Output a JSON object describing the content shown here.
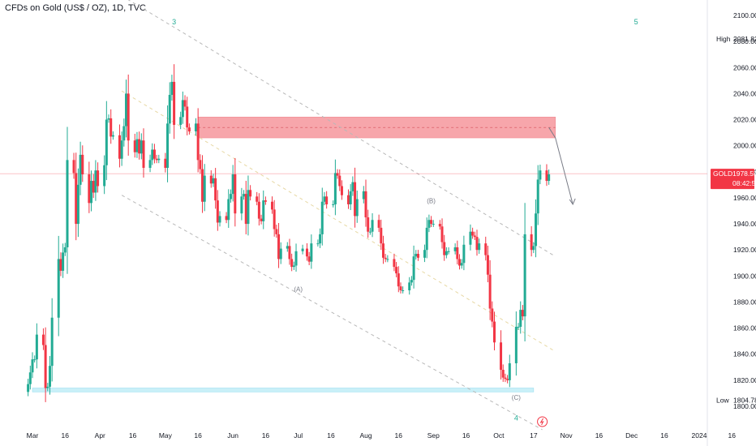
{
  "header": {
    "title": "CFDs on Gold (US$ / OZ), 1D, TVC"
  },
  "colors": {
    "up": "#22ab94",
    "down": "#f23645",
    "zone_red": "#f7a1a7",
    "zone_blue": "#c9f0f8",
    "channel": "#b8b8b8",
    "mid_channel": "#e7d8a4",
    "wave_green": "#22ab94",
    "wave_gray": "#787b86",
    "gold_tag": "#f23645"
  },
  "chart_data": {
    "type": "candlestick",
    "symbol": "GOLD",
    "timeframe": "1D",
    "ylim": [
      1790,
      2110
    ],
    "y_ticks": [
      1800,
      1820,
      1840,
      1860,
      1880,
      1900,
      1920,
      1940,
      1960,
      1980,
      2000,
      2020,
      2040,
      2060,
      2080,
      2100
    ],
    "y_tick_labels": [
      "1800.00",
      "1820.00",
      "1840.00",
      "1860.00",
      "1880.00",
      "1900.00",
      "1920.00",
      "1940.00",
      "1960.00",
      "1980.00",
      "2000.00",
      "2020.00",
      "2040.00",
      "2060.00",
      "2080.00",
      "2100.00"
    ],
    "x_ticks": [
      {
        "date": "2023-03-01",
        "label": "Mar"
      },
      {
        "date": "2023-03-16",
        "label": "16"
      },
      {
        "date": "2023-04-01",
        "label": "Apr"
      },
      {
        "date": "2023-04-16",
        "label": "16"
      },
      {
        "date": "2023-05-01",
        "label": "May"
      },
      {
        "date": "2023-05-16",
        "label": "16"
      },
      {
        "date": "2023-06-01",
        "label": "Jun"
      },
      {
        "date": "2023-06-16",
        "label": "16"
      },
      {
        "date": "2023-07-01",
        "label": "Jul"
      },
      {
        "date": "2023-07-16",
        "label": "16"
      },
      {
        "date": "2023-08-01",
        "label": "Aug"
      },
      {
        "date": "2023-08-16",
        "label": "16"
      },
      {
        "date": "2023-09-01",
        "label": "Sep"
      },
      {
        "date": "2023-09-16",
        "label": "16"
      },
      {
        "date": "2023-10-01",
        "label": "Oct"
      },
      {
        "date": "2023-10-17",
        "label": "17"
      },
      {
        "date": "2023-11-01",
        "label": "Nov"
      },
      {
        "date": "2023-11-16",
        "label": "16"
      },
      {
        "date": "2023-12-01",
        "label": "Dec"
      },
      {
        "date": "2023-12-16",
        "label": "16"
      },
      {
        "date": "2024-01-01",
        "label": "2024"
      },
      {
        "date": "2024-01-16",
        "label": "16"
      }
    ],
    "x_domain": [
      "2023-02-25",
      "2024-01-20"
    ],
    "closes": [
      {
        "d": "2023-02-27",
        "c": 1817
      },
      {
        "d": "2023-02-28",
        "c": 1826
      },
      {
        "d": "2023-03-01",
        "c": 1836
      },
      {
        "d": "2023-03-02",
        "c": 1836
      },
      {
        "d": "2023-03-03",
        "c": 1855
      },
      {
        "d": "2023-03-06",
        "c": 1847
      },
      {
        "d": "2023-03-07",
        "c": 1814
      },
      {
        "d": "2023-03-08",
        "c": 1815
      },
      {
        "d": "2023-03-09",
        "c": 1831
      },
      {
        "d": "2023-03-10",
        "c": 1868
      },
      {
        "d": "2023-03-13",
        "c": 1913
      },
      {
        "d": "2023-03-14",
        "c": 1904
      },
      {
        "d": "2023-03-15",
        "c": 1918
      },
      {
        "d": "2023-03-16",
        "c": 1922
      },
      {
        "d": "2023-03-17",
        "c": 1989
      },
      {
        "d": "2023-03-20",
        "c": 1979
      },
      {
        "d": "2023-03-21",
        "c": 1940
      },
      {
        "d": "2023-03-22",
        "c": 1970
      },
      {
        "d": "2023-03-23",
        "c": 1993
      },
      {
        "d": "2023-03-24",
        "c": 1978
      },
      {
        "d": "2023-03-27",
        "c": 1956
      },
      {
        "d": "2023-03-28",
        "c": 1973
      },
      {
        "d": "2023-03-29",
        "c": 1964
      },
      {
        "d": "2023-03-30",
        "c": 1981
      },
      {
        "d": "2023-03-31",
        "c": 1969
      },
      {
        "d": "2023-04-03",
        "c": 1985
      },
      {
        "d": "2023-04-04",
        "c": 2020
      },
      {
        "d": "2023-04-05",
        "c": 2021
      },
      {
        "d": "2023-04-06",
        "c": 2007
      },
      {
        "d": "2023-04-07",
        "c": 2008
      },
      {
        "d": "2023-04-10",
        "c": 1990
      },
      {
        "d": "2023-04-11",
        "c": 2004
      },
      {
        "d": "2023-04-12",
        "c": 2015
      },
      {
        "d": "2023-04-13",
        "c": 2040
      },
      {
        "d": "2023-04-14",
        "c": 2004
      },
      {
        "d": "2023-04-17",
        "c": 1995
      },
      {
        "d": "2023-04-18",
        "c": 2005
      },
      {
        "d": "2023-04-19",
        "c": 1994
      },
      {
        "d": "2023-04-20",
        "c": 2004
      },
      {
        "d": "2023-04-21",
        "c": 1983
      },
      {
        "d": "2023-04-24",
        "c": 1989
      },
      {
        "d": "2023-04-25",
        "c": 1997
      },
      {
        "d": "2023-04-26",
        "c": 1990
      },
      {
        "d": "2023-04-27",
        "c": 1989
      },
      {
        "d": "2023-04-28",
        "c": 1990
      },
      {
        "d": "2023-05-01",
        "c": 1983
      },
      {
        "d": "2023-05-02",
        "c": 2017
      },
      {
        "d": "2023-05-03",
        "c": 2039
      },
      {
        "d": "2023-05-04",
        "c": 2049
      },
      {
        "d": "2023-05-05",
        "c": 2016
      },
      {
        "d": "2023-05-08",
        "c": 2022
      },
      {
        "d": "2023-05-09",
        "c": 2035
      },
      {
        "d": "2023-05-10",
        "c": 2030
      },
      {
        "d": "2023-05-11",
        "c": 2014
      },
      {
        "d": "2023-05-12",
        "c": 2011
      },
      {
        "d": "2023-05-15",
        "c": 2017
      },
      {
        "d": "2023-05-16",
        "c": 1989
      },
      {
        "d": "2023-05-17",
        "c": 1982
      },
      {
        "d": "2023-05-18",
        "c": 1957
      },
      {
        "d": "2023-05-19",
        "c": 1977
      },
      {
        "d": "2023-05-22",
        "c": 1971
      },
      {
        "d": "2023-05-23",
        "c": 1975
      },
      {
        "d": "2023-05-24",
        "c": 1958
      },
      {
        "d": "2023-05-25",
        "c": 1941
      },
      {
        "d": "2023-05-26",
        "c": 1946
      },
      {
        "d": "2023-05-29",
        "c": 1943
      },
      {
        "d": "2023-05-30",
        "c": 1959
      },
      {
        "d": "2023-05-31",
        "c": 1963
      },
      {
        "d": "2023-06-01",
        "c": 1978
      },
      {
        "d": "2023-06-02",
        "c": 1948
      },
      {
        "d": "2023-06-05",
        "c": 1961
      },
      {
        "d": "2023-06-06",
        "c": 1963
      },
      {
        "d": "2023-06-07",
        "c": 1940
      },
      {
        "d": "2023-06-08",
        "c": 1966
      },
      {
        "d": "2023-06-09",
        "c": 1961
      },
      {
        "d": "2023-06-12",
        "c": 1957
      },
      {
        "d": "2023-06-13",
        "c": 1944
      },
      {
        "d": "2023-06-14",
        "c": 1942
      },
      {
        "d": "2023-06-15",
        "c": 1958
      },
      {
        "d": "2023-06-16",
        "c": 1957
      },
      {
        "d": "2023-06-19",
        "c": 1951
      },
      {
        "d": "2023-06-20",
        "c": 1936
      },
      {
        "d": "2023-06-21",
        "c": 1932
      },
      {
        "d": "2023-06-22",
        "c": 1913
      },
      {
        "d": "2023-06-23",
        "c": 1921
      },
      {
        "d": "2023-06-26",
        "c": 1923
      },
      {
        "d": "2023-06-27",
        "c": 1913
      },
      {
        "d": "2023-06-28",
        "c": 1907
      },
      {
        "d": "2023-06-29",
        "c": 1908
      },
      {
        "d": "2023-06-30",
        "c": 1919
      },
      {
        "d": "2023-07-03",
        "c": 1921
      },
      {
        "d": "2023-07-05",
        "c": 1915
      },
      {
        "d": "2023-07-06",
        "c": 1911
      },
      {
        "d": "2023-07-07",
        "c": 1925
      },
      {
        "d": "2023-07-10",
        "c": 1925
      },
      {
        "d": "2023-07-11",
        "c": 1932
      },
      {
        "d": "2023-07-12",
        "c": 1957
      },
      {
        "d": "2023-07-13",
        "c": 1961
      },
      {
        "d": "2023-07-14",
        "c": 1955
      },
      {
        "d": "2023-07-17",
        "c": 1955
      },
      {
        "d": "2023-07-18",
        "c": 1979
      },
      {
        "d": "2023-07-19",
        "c": 1977
      },
      {
        "d": "2023-07-20",
        "c": 1969
      },
      {
        "d": "2023-07-21",
        "c": 1962
      },
      {
        "d": "2023-07-24",
        "c": 1955
      },
      {
        "d": "2023-07-25",
        "c": 1965
      },
      {
        "d": "2023-07-26",
        "c": 1972
      },
      {
        "d": "2023-07-27",
        "c": 1946
      },
      {
        "d": "2023-07-28",
        "c": 1959
      },
      {
        "d": "2023-07-31",
        "c": 1965
      },
      {
        "d": "2023-08-01",
        "c": 1945
      },
      {
        "d": "2023-08-02",
        "c": 1934
      },
      {
        "d": "2023-08-03",
        "c": 1934
      },
      {
        "d": "2023-08-04",
        "c": 1943
      },
      {
        "d": "2023-08-07",
        "c": 1937
      },
      {
        "d": "2023-08-08",
        "c": 1925
      },
      {
        "d": "2023-08-09",
        "c": 1914
      },
      {
        "d": "2023-08-10",
        "c": 1913
      },
      {
        "d": "2023-08-11",
        "c": 1913
      },
      {
        "d": "2023-08-14",
        "c": 1907
      },
      {
        "d": "2023-08-15",
        "c": 1902
      },
      {
        "d": "2023-08-16",
        "c": 1892
      },
      {
        "d": "2023-08-17",
        "c": 1889
      },
      {
        "d": "2023-08-18",
        "c": 1889
      },
      {
        "d": "2023-08-21",
        "c": 1895
      },
      {
        "d": "2023-08-22",
        "c": 1897
      },
      {
        "d": "2023-08-23",
        "c": 1915
      },
      {
        "d": "2023-08-24",
        "c": 1917
      },
      {
        "d": "2023-08-25",
        "c": 1914
      },
      {
        "d": "2023-08-28",
        "c": 1920
      },
      {
        "d": "2023-08-29",
        "c": 1937
      },
      {
        "d": "2023-08-30",
        "c": 1943
      },
      {
        "d": "2023-08-31",
        "c": 1940
      },
      {
        "d": "2023-09-01",
        "c": 1940
      },
      {
        "d": "2023-09-04",
        "c": 1938
      },
      {
        "d": "2023-09-05",
        "c": 1926
      },
      {
        "d": "2023-09-06",
        "c": 1916
      },
      {
        "d": "2023-09-07",
        "c": 1919
      },
      {
        "d": "2023-09-08",
        "c": 1919
      },
      {
        "d": "2023-09-11",
        "c": 1922
      },
      {
        "d": "2023-09-12",
        "c": 1913
      },
      {
        "d": "2023-09-13",
        "c": 1908
      },
      {
        "d": "2023-09-14",
        "c": 1910
      },
      {
        "d": "2023-09-15",
        "c": 1924
      },
      {
        "d": "2023-09-18",
        "c": 1934
      },
      {
        "d": "2023-09-19",
        "c": 1931
      },
      {
        "d": "2023-09-20",
        "c": 1930
      },
      {
        "d": "2023-09-21",
        "c": 1920
      },
      {
        "d": "2023-09-22",
        "c": 1925
      },
      {
        "d": "2023-09-25",
        "c": 1916
      },
      {
        "d": "2023-09-26",
        "c": 1901
      },
      {
        "d": "2023-09-27",
        "c": 1875
      },
      {
        "d": "2023-09-28",
        "c": 1865
      },
      {
        "d": "2023-09-29",
        "c": 1849
      },
      {
        "d": "2023-10-02",
        "c": 1828
      },
      {
        "d": "2023-10-03",
        "c": 1822
      },
      {
        "d": "2023-10-04",
        "c": 1821
      },
      {
        "d": "2023-10-05",
        "c": 1820
      },
      {
        "d": "2023-10-06",
        "c": 1833
      },
      {
        "d": "2023-10-09",
        "c": 1861
      },
      {
        "d": "2023-10-10",
        "c": 1861
      },
      {
        "d": "2023-10-11",
        "c": 1874
      },
      {
        "d": "2023-10-12",
        "c": 1869
      },
      {
        "d": "2023-10-13",
        "c": 1932
      },
      {
        "d": "2023-10-16",
        "c": 1920
      },
      {
        "d": "2023-10-17",
        "c": 1923
      },
      {
        "d": "2023-10-18",
        "c": 1948
      },
      {
        "d": "2023-10-19",
        "c": 1974
      },
      {
        "d": "2023-10-20",
        "c": 1981
      },
      {
        "d": "2023-10-23",
        "c": 1973
      },
      {
        "d": "2023-10-24",
        "c": 1978
      }
    ],
    "price_tag": {
      "symbol": "GOLD",
      "price": "1978.55",
      "countdown": "08:42:57"
    },
    "high": {
      "label": "High",
      "value": "2081.82"
    },
    "low": {
      "label": "Low",
      "value": "1804.78"
    },
    "resistance_zone": {
      "x0": "2023-05-16",
      "x1": "2023-10-27",
      "y0": 2006,
      "y1": 2022
    },
    "support_zone": {
      "x0": "2023-03-01",
      "x1": "2023-10-17",
      "y0": 1811,
      "y1": 1814
    },
    "wave_labels": [
      {
        "text": "3",
        "d": "2023-05-05",
        "v": 2093,
        "style": "green"
      },
      {
        "text": "5",
        "d": "2023-12-03",
        "v": 2093,
        "style": "green"
      },
      {
        "text": "(A)",
        "d": "2023-07-01",
        "v": 1888,
        "style": "gray"
      },
      {
        "text": "(B)",
        "d": "2023-08-31",
        "v": 1956,
        "style": "gray"
      },
      {
        "text": "(C)",
        "d": "2023-10-09",
        "v": 1805,
        "style": "gray"
      },
      {
        "text": "4",
        "d": "2023-10-09",
        "v": 1789,
        "style": "green"
      }
    ],
    "projection": [
      {
        "d": "2023-10-24",
        "v": 2014
      },
      {
        "d": "2023-10-27",
        "v": 2006
      },
      {
        "d": "2023-11-04",
        "v": 1955
      }
    ],
    "channel_lines": [
      {
        "p0": {
          "d": "2023-04-11",
          "v": 2115
        },
        "p1": {
          "d": "2023-10-27",
          "v": 1915
        },
        "style": "edge"
      },
      {
        "p0": {
          "d": "2023-04-11",
          "v": 2042
        },
        "p1": {
          "d": "2023-10-27",
          "v": 1842
        },
        "style": "mid"
      },
      {
        "p0": {
          "d": "2023-04-11",
          "v": 1962
        },
        "p1": {
          "d": "2023-10-21",
          "v": 1782
        },
        "style": "edge"
      }
    ]
  }
}
